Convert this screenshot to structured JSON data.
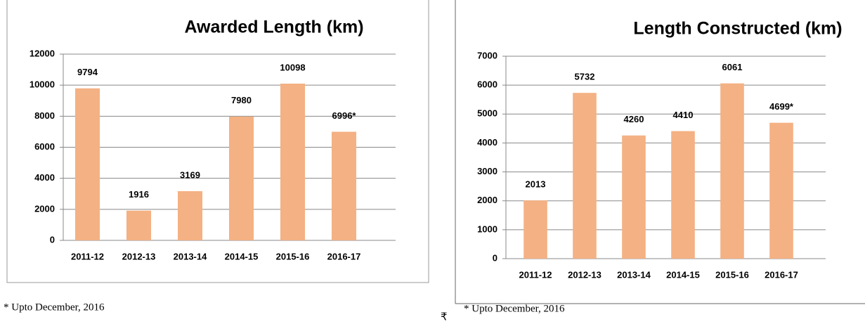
{
  "chart_data": [
    {
      "type": "bar",
      "title": "Awarded Length (km)",
      "categories": [
        "2011-12",
        "2012-13",
        "2013-14",
        "2014-15",
        "2015-16",
        "2016-17"
      ],
      "values": [
        9794,
        1916,
        3169,
        7980,
        10098,
        6996
      ],
      "value_labels": [
        "9794",
        "1916",
        "3169",
        "7980",
        "10098",
        "6996*"
      ],
      "color": "#f4b183",
      "ylim": [
        0,
        12000
      ],
      "yticks": [
        0,
        2000,
        4000,
        6000,
        8000,
        10000,
        12000
      ],
      "grid": true,
      "note": "* Upto December, 2016"
    },
    {
      "type": "bar",
      "title": "Length Constructed (km)",
      "categories": [
        "2011-12",
        "2012-13",
        "2013-14",
        "2014-15",
        "2015-16",
        "2016-17"
      ],
      "values": [
        2013,
        5732,
        4260,
        4410,
        6061,
        4699
      ],
      "value_labels": [
        "2013",
        "5732",
        "4260",
        "4410",
        "6061",
        "4699*"
      ],
      "color": "#f4b183",
      "ylim": [
        0,
        7000
      ],
      "yticks": [
        0,
        1000,
        2000,
        3000,
        4000,
        5000,
        6000,
        7000
      ],
      "grid": true,
      "note": "* Upto December, 2016"
    }
  ],
  "currency_mark": "₹"
}
